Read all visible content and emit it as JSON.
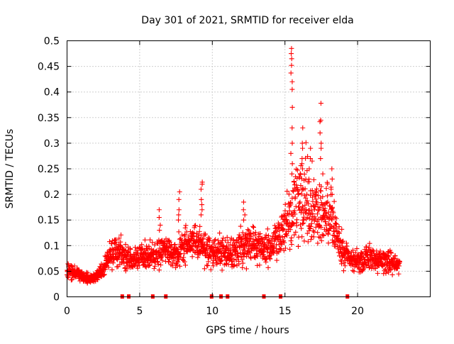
{
  "chart_data": {
    "type": "scatter",
    "title": "Day 301 of 2021, SRMTID for receiver elda",
    "xlabel": "GPS time / hours",
    "ylabel": "SRMTID / TECUs",
    "xlim": [
      0,
      25
    ],
    "ylim": [
      0,
      0.5
    ],
    "xticks": [
      0,
      5,
      10,
      15,
      20
    ],
    "xtick_labels": [
      "0",
      "5",
      "10",
      "15",
      "20"
    ],
    "yticks": [
      0,
      0.05,
      0.1,
      0.15,
      0.2,
      0.25,
      0.3,
      0.35,
      0.4,
      0.45,
      0.5
    ],
    "ytick_labels": [
      "0",
      "0.05",
      "0.1",
      "0.15",
      "0.2",
      "0.25",
      "0.3",
      "0.35",
      "0.4",
      "0.45",
      "0.5"
    ],
    "grid": true,
    "marker": "+",
    "color": "#ff0000",
    "series": [
      {
        "name": "SRMTID",
        "profile": {
          "x": [
            0.0,
            0.5,
            1.0,
            1.5,
            2.0,
            2.5,
            3.0,
            3.5,
            4.0,
            4.5,
            5.0,
            5.5,
            6.0,
            6.5,
            7.0,
            7.5,
            8.0,
            8.5,
            9.0,
            9.5,
            10.0,
            10.5,
            11.0,
            11.5,
            12.0,
            12.5,
            13.0,
            13.5,
            14.0,
            14.5,
            15.0,
            15.5,
            16.0,
            16.5,
            17.0,
            17.5,
            18.0,
            18.5,
            19.0,
            19.5,
            20.0,
            20.5,
            21.0,
            21.5,
            22.0,
            22.5,
            22.9
          ],
          "y": [
            0.055,
            0.05,
            0.04,
            0.035,
            0.04,
            0.055,
            0.085,
            0.095,
            0.075,
            0.07,
            0.085,
            0.08,
            0.075,
            0.09,
            0.09,
            0.08,
            0.1,
            0.105,
            0.11,
            0.095,
            0.085,
            0.09,
            0.085,
            0.09,
            0.1,
            0.105,
            0.1,
            0.095,
            0.1,
            0.11,
            0.13,
            0.17,
            0.19,
            0.19,
            0.17,
            0.17,
            0.17,
            0.13,
            0.095,
            0.07,
            0.07,
            0.075,
            0.075,
            0.07,
            0.07,
            0.065,
            0.065
          ]
        },
        "spikes": [
          {
            "x": 15.45,
            "y": [
              0.485,
              0.475,
              0.465,
              0.452,
              0.437,
              0.42,
              0.405,
              0.37,
              0.33,
              0.3,
              0.28,
              0.26,
              0.24
            ]
          },
          {
            "x": 17.45,
            "y": [
              0.378,
              0.345,
              0.342,
              0.32,
              0.3,
              0.29,
              0.27
            ]
          },
          {
            "x": 9.25,
            "y": [
              0.224,
              0.22,
              0.21,
              0.19,
              0.18,
              0.17,
              0.16
            ]
          },
          {
            "x": 7.7,
            "y": [
              0.205,
              0.19,
              0.17,
              0.16,
              0.15
            ]
          },
          {
            "x": 16.2,
            "y": [
              0.33,
              0.3,
              0.29,
              0.27,
              0.26,
              0.25
            ]
          },
          {
            "x": 16.7,
            "y": [
              0.29,
              0.27,
              0.25,
              0.23
            ]
          },
          {
            "x": 18.2,
            "y": [
              0.25,
              0.23,
              0.21,
              0.2
            ]
          },
          {
            "x": 12.2,
            "y": [
              0.185,
              0.17,
              0.16,
              0.15
            ]
          },
          {
            "x": 6.4,
            "y": [
              0.17,
              0.155,
              0.14,
              0.13
            ]
          }
        ],
        "zeros_x": [
          3.8,
          4.25,
          5.9,
          6.8,
          9.95,
          10.6,
          11.05,
          13.55,
          14.7,
          19.3
        ]
      }
    ]
  }
}
